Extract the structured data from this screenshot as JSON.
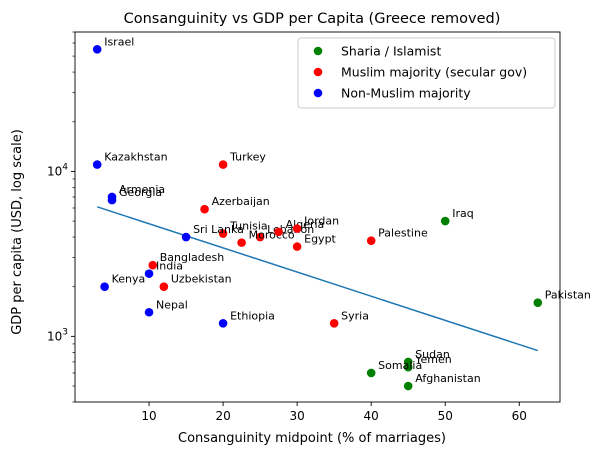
{
  "chart_data": {
    "type": "scatter",
    "title": "Consanguinity vs GDP per Capita (Greece removed)",
    "xlabel": "Consanguinity midpoint (% of marriages)",
    "ylabel": "GDP per capita (USD, log scale)",
    "x_ticks": [
      10,
      20,
      30,
      40,
      50,
      60
    ],
    "y_ticks": [
      {
        "value": 1000,
        "base": "10",
        "exp": "3"
      },
      {
        "value": 10000,
        "base": "10",
        "exp": "4"
      }
    ],
    "xlim": [
      0,
      65.5
    ],
    "ylim": [
      400,
      70000
    ],
    "y_scale": "log",
    "legend_position": "top-right",
    "colors": {
      "sharia": "#008000",
      "secular": "#ff0000",
      "non_muslim": "#0000ff",
      "trend": "#1f77b4"
    },
    "series": [
      {
        "name": "Sharia / Islamist",
        "color_key": "sharia",
        "points": [
          {
            "label": "Iraq",
            "x": 50,
            "y": 5000
          },
          {
            "label": "Pakistan",
            "x": 62.5,
            "y": 1600
          },
          {
            "label": "Sudan",
            "x": 45,
            "y": 700
          },
          {
            "label": "Yemen",
            "x": 45,
            "y": 650
          },
          {
            "label": "Somalia",
            "x": 40,
            "y": 600
          },
          {
            "label": "Afghanistan",
            "x": 45,
            "y": 500
          }
        ]
      },
      {
        "name": "Muslim majority (secular gov)",
        "color_key": "secular",
        "points": [
          {
            "label": "Turkey",
            "x": 20,
            "y": 11000
          },
          {
            "label": "Azerbaijan",
            "x": 17.5,
            "y": 5900
          },
          {
            "label": "Tunisia",
            "x": 20,
            "y": 4200
          },
          {
            "label": "Lebanon",
            "x": 25,
            "y": 4000
          },
          {
            "label": "Morocco",
            "x": 22.5,
            "y": 3700
          },
          {
            "label": "Algeria",
            "x": 27.5,
            "y": 4300
          },
          {
            "label": "Jordan",
            "x": 30,
            "y": 4500
          },
          {
            "label": "Egypt",
            "x": 30,
            "y": 3500
          },
          {
            "label": "Palestine",
            "x": 40,
            "y": 3800
          },
          {
            "label": "Bangladesh",
            "x": 10.5,
            "y": 2700
          },
          {
            "label": "Uzbekistan",
            "x": 12,
            "y": 2000
          },
          {
            "label": "Syria",
            "x": 35,
            "y": 1200
          }
        ]
      },
      {
        "name": "Non-Muslim majority",
        "color_key": "non_muslim",
        "points": [
          {
            "label": "Israel",
            "x": 3,
            "y": 55000
          },
          {
            "label": "Kazakhstan",
            "x": 3,
            "y": 11000
          },
          {
            "label": "Armenia",
            "x": 5,
            "y": 7000
          },
          {
            "label": "Georgia",
            "x": 5,
            "y": 6700
          },
          {
            "label": "Sri Lanka",
            "x": 15,
            "y": 4000
          },
          {
            "label": "India",
            "x": 10,
            "y": 2400
          },
          {
            "label": "Kenya",
            "x": 4,
            "y": 2000
          },
          {
            "label": "Nepal",
            "x": 10,
            "y": 1400
          },
          {
            "label": "Ethiopia",
            "x": 20,
            "y": 1200
          }
        ]
      }
    ],
    "trendline": {
      "x": [
        3,
        62.5
      ],
      "y": [
        6100,
        820
      ]
    }
  }
}
